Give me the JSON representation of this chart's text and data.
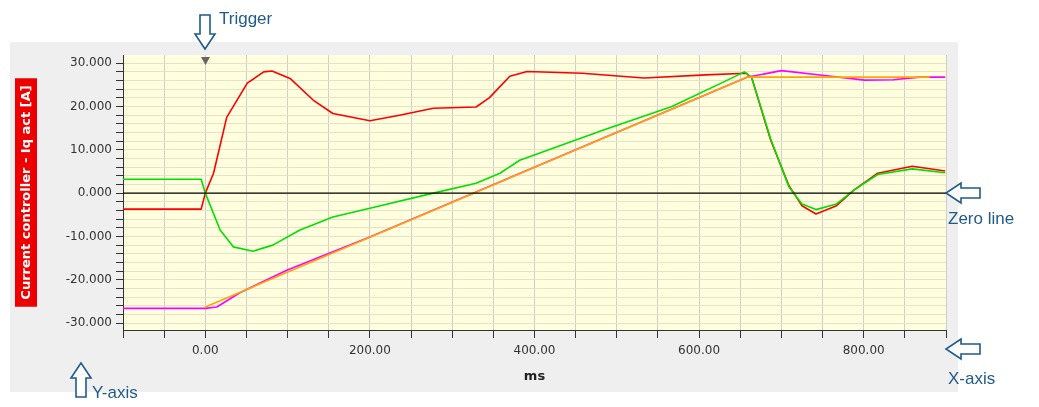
{
  "chart_data": {
    "type": "line",
    "xlabel": "ms",
    "ylabel": "Current controller - Iq act [A]",
    "marker": "none",
    "line_style": "solid",
    "grid": true,
    "xlim": [
      -100,
      900
    ],
    "ylim": [
      -31.6,
      31.9
    ],
    "xticks": [
      {
        "value": -100,
        "label": null
      },
      {
        "value": -50,
        "label": null
      },
      {
        "value": 0,
        "label": "0.00"
      },
      {
        "value": 50,
        "label": null
      },
      {
        "value": 100,
        "label": null
      },
      {
        "value": 150,
        "label": null
      },
      {
        "value": 200,
        "label": "200.00"
      },
      {
        "value": 250,
        "label": null
      },
      {
        "value": 300,
        "label": null
      },
      {
        "value": 350,
        "label": null
      },
      {
        "value": 400,
        "label": "400.00"
      },
      {
        "value": 450,
        "label": null
      },
      {
        "value": 500,
        "label": null
      },
      {
        "value": 550,
        "label": null
      },
      {
        "value": 600,
        "label": "600.00"
      },
      {
        "value": 650,
        "label": null
      },
      {
        "value": 700,
        "label": null
      },
      {
        "value": 750,
        "label": null
      },
      {
        "value": 800,
        "label": "800.00"
      },
      {
        "value": 850,
        "label": null
      },
      {
        "value": 900,
        "label": null
      }
    ],
    "yticks": [
      {
        "value": -30,
        "label": "-30.000"
      },
      {
        "value": -28,
        "label": null
      },
      {
        "value": -26,
        "label": null
      },
      {
        "value": -24,
        "label": null
      },
      {
        "value": -22,
        "label": null
      },
      {
        "value": -20,
        "label": "-20.000"
      },
      {
        "value": -18,
        "label": null
      },
      {
        "value": -16,
        "label": null
      },
      {
        "value": -14,
        "label": null
      },
      {
        "value": -12,
        "label": null
      },
      {
        "value": -10,
        "label": "-10.000"
      },
      {
        "value": -8,
        "label": null
      },
      {
        "value": -6,
        "label": null
      },
      {
        "value": -4,
        "label": null
      },
      {
        "value": -2,
        "label": null
      },
      {
        "value": 0,
        "label": "0.000"
      },
      {
        "value": 2,
        "label": null
      },
      {
        "value": 4,
        "label": null
      },
      {
        "value": 6,
        "label": null
      },
      {
        "value": 8,
        "label": null
      },
      {
        "value": 10,
        "label": "10.000"
      },
      {
        "value": 12,
        "label": null
      },
      {
        "value": 14,
        "label": null
      },
      {
        "value": 16,
        "label": null
      },
      {
        "value": 18,
        "label": null
      },
      {
        "value": 20,
        "label": "20.000"
      },
      {
        "value": 22,
        "label": null
      },
      {
        "value": 24,
        "label": null
      },
      {
        "value": 26,
        "label": null
      },
      {
        "value": 28,
        "label": null
      },
      {
        "value": 30,
        "label": "30.000"
      }
    ],
    "series": [
      {
        "color": "#ffa500",
        "x": [
          0,
          659,
          880
        ],
        "values": [
          -26.3,
          26.8,
          26.8
        ]
      },
      {
        "color": "#ff00ff",
        "x": [
          -100,
          0,
          14,
          42,
          99,
          200,
          659,
          700,
          747,
          801,
          836,
          868,
          899
        ],
        "values": [
          -26.6,
          -26.6,
          -26.3,
          -23,
          -17.8,
          -10.1,
          26.8,
          28.3,
          27.3,
          26.1,
          26.2,
          26.8,
          26.8
        ]
      },
      {
        "color": "#00e000",
        "x": [
          -100,
          -5,
          0,
          18,
          34,
          58,
          82,
          115,
          155,
          200,
          277,
          329,
          358,
          382,
          483,
          567,
          630,
          655,
          664,
          687,
          709,
          725,
          742,
          767,
          788,
          817,
          859,
          899
        ],
        "values": [
          3.2,
          3.2,
          0,
          -8.5,
          -12.4,
          -13.4,
          -12,
          -8.5,
          -5.5,
          -3.5,
          0,
          2.3,
          4.6,
          7.6,
          14.5,
          20,
          25.7,
          28,
          26.6,
          12.5,
          1.5,
          -2.5,
          -3.8,
          -2.5,
          0.7,
          4.3,
          5.6,
          4.7
        ]
      },
      {
        "color": "#ff0000",
        "x": [
          -100,
          -5,
          0,
          10,
          26,
          51,
          71,
          81,
          103,
          131,
          155,
          200,
          236,
          277,
          329,
          345,
          370,
          391,
          458,
          533,
          608,
          657,
          664,
          687,
          709,
          725,
          742,
          767,
          788,
          817,
          859,
          899
        ],
        "values": [
          -3.7,
          -3.7,
          0,
          4.6,
          17.5,
          25.4,
          28,
          28.2,
          26.5,
          21.5,
          18.4,
          16.7,
          18,
          19.6,
          19.9,
          22,
          27,
          28.1,
          27.7,
          26.6,
          27.3,
          27.7,
          26.6,
          12.2,
          1.8,
          -2.9,
          -4.8,
          -2.9,
          0.7,
          4.6,
          6.2,
          5.1
        ]
      }
    ],
    "ref_lines": [
      {
        "axis": "y",
        "value": 0,
        "label": "Zero line",
        "color": "#000000"
      }
    ],
    "annotations": [
      "Trigger",
      "Y-axis",
      "X-axis"
    ]
  }
}
